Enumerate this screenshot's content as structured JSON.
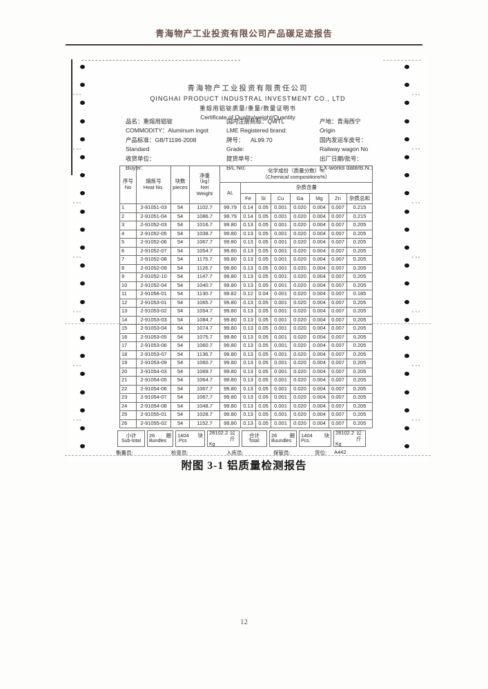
{
  "report": {
    "header_title": "青海物产工业投资有限公司产品碳足迹报告",
    "caption": "附图 3-1 铝质量检测报告",
    "page_number": "12"
  },
  "certificate": {
    "company_cn": "青海物产工业投资有限责任公司",
    "company_en": "QINGHAI  PRODUCT  INDUSTRAL  INVESTMENT  CO., LTD",
    "doc_title_cn": "重熔用铝锭质量/重量/数量证明书",
    "doc_title_en": "Certificate  of  Quality/weight/Quantity",
    "info_columns": [
      [
        "品名：重熔用铝锭",
        "COMMODITY：Aluminum ingot",
        "产品标准：GB/T1196-2008",
        "Standard",
        "收货单位：",
        "Buyer:"
      ],
      [
        "国内注册商标：QWTL",
        "LME Registered brand:",
        "牌号：    AL99.70",
        "Grade:",
        "提货单号：",
        "B/L No:"
      ],
      [
        "产地：青海西宁",
        "Origin",
        "国内发运车皮号：",
        "Railway wagon No",
        "出厂日期/批号：",
        "EX-works date/B.N.:"
      ]
    ],
    "table": {
      "header": {
        "no_cn": "序号",
        "no_en": "No",
        "heat_cn": "熔炼号",
        "heat_en": "Heat No.",
        "pieces_cn": "块数",
        "pieces_en": "pieces",
        "net_cn": "净重",
        "net_kg": "（kg）",
        "net_en1": "Net",
        "net_en2": "Weight",
        "chem_cn": "化学成份（质量分数）%",
        "chem_en": "（Chemical compositions%）",
        "al": "AL",
        "impurity_cn": "杂质含量",
        "elements": [
          "Fe",
          "Si",
          "Cu",
          "Ga",
          "Mg",
          "Zn",
          "杂质总和"
        ]
      },
      "rows": [
        [
          "1",
          "2-91051-03",
          "54",
          "1102.7",
          "99.79",
          "0.14",
          "0.05",
          "0.001",
          "0.020",
          "0.004",
          "0.007",
          "0.215"
        ],
        [
          "2",
          "2-91051-04",
          "54",
          "1086.7",
          "99.79",
          "0.14",
          "0.05",
          "0.001",
          "0.020",
          "0.004",
          "0.007",
          "0.215"
        ],
        [
          "3",
          "2-91052-03",
          "54",
          "1016.7",
          "99.80",
          "0.13",
          "0.05",
          "0.001",
          "0.020",
          "0.004",
          "0.007",
          "0.205"
        ],
        [
          "4",
          "2-91052-05",
          "54",
          "1038.7",
          "99.80",
          "0.13",
          "0.05",
          "0.001",
          "0.020",
          "0.004",
          "0.007",
          "0.205"
        ],
        [
          "5",
          "2-91052-06",
          "54",
          "1067.7",
          "99.80",
          "0.13",
          "0.05",
          "0.001",
          "0.020",
          "0.004",
          "0.007",
          "0.205"
        ],
        [
          "6",
          "2-91052-07",
          "54",
          "1054.7",
          "99.80",
          "0.13",
          "0.05",
          "0.001",
          "0.020",
          "0.004",
          "0.007",
          "0.205"
        ],
        [
          "7",
          "2-91052-08",
          "54",
          "1175.7",
          "99.80",
          "0.13",
          "0.05",
          "0.001",
          "0.020",
          "0.004",
          "0.007",
          "0.205"
        ],
        [
          "8",
          "2-91052-09",
          "54",
          "1126.7",
          "99.80",
          "0.13",
          "0.05",
          "0.001",
          "0.020",
          "0.004",
          "0.007",
          "0.205"
        ],
        [
          "9",
          "2-91052-10",
          "54",
          "1147.7",
          "99.80",
          "0.13",
          "0.05",
          "0.001",
          "0.020",
          "0.004",
          "0.007",
          "0.205"
        ],
        [
          "10",
          "2-91052-04",
          "54",
          "1040.7",
          "99.80",
          "0.13",
          "0.05",
          "0.001",
          "0.020",
          "0.004",
          "0.007",
          "0.205"
        ],
        [
          "11",
          "2-91056-01",
          "54",
          "1130.7",
          "99.82",
          "0.12",
          "0.04",
          "0.001",
          "0.020",
          "0.004",
          "0.007",
          "0.185"
        ],
        [
          "12",
          "2-91053-01",
          "54",
          "1065.7",
          "99.80",
          "0.13",
          "0.05",
          "0.001",
          "0.020",
          "0.004",
          "0.007",
          "0.205"
        ],
        [
          "13",
          "2-91053-02",
          "54",
          "1054.7",
          "99.80",
          "0.13",
          "0.05",
          "0.001",
          "0.020",
          "0.004",
          "0.007",
          "0.205"
        ],
        [
          "14",
          "2-91053-03",
          "54",
          "1084.7",
          "99.80",
          "0.13",
          "0.05",
          "0.001",
          "0.020",
          "0.004",
          "0.007",
          "0.205"
        ],
        [
          "15",
          "2-91053-04",
          "54",
          "1074.7",
          "99.80",
          "0.13",
          "0.05",
          "0.001",
          "0.020",
          "0.004",
          "0.007",
          "0.205"
        ],
        [
          "16",
          "2-91053-05",
          "54",
          "1075.7",
          "99.80",
          "0.13",
          "0.05",
          "0.001",
          "0.020",
          "0.004",
          "0.007",
          "0.205"
        ],
        [
          "17",
          "2-91053-06",
          "54",
          "1060.7",
          "99.80",
          "0.13",
          "0.05",
          "0.001",
          "0.020",
          "0.004",
          "0.007",
          "0.205"
        ],
        [
          "18",
          "2-91053-07",
          "54",
          "1136.7",
          "99.80",
          "0.13",
          "0.05",
          "0.001",
          "0.020",
          "0.004",
          "0.007",
          "0.205"
        ],
        [
          "19",
          "2-91053-09",
          "54",
          "1060.7",
          "99.80",
          "0.13",
          "0.05",
          "0.001",
          "0.020",
          "0.004",
          "0.007",
          "0.205"
        ],
        [
          "20",
          "2-91054-03",
          "54",
          "1069.7",
          "99.80",
          "0.13",
          "0.05",
          "0.001",
          "0.020",
          "0.004",
          "0.007",
          "0.205"
        ],
        [
          "21",
          "2-91054-05",
          "54",
          "1064.7",
          "99.80",
          "0.13",
          "0.05",
          "0.001",
          "0.020",
          "0.004",
          "0.007",
          "0.205"
        ],
        [
          "22",
          "2-91054-06",
          "54",
          "1067.7",
          "99.80",
          "0.13",
          "0.05",
          "0.001",
          "0.020",
          "0.004",
          "0.007",
          "0.205"
        ],
        [
          "23",
          "2-91054-07",
          "54",
          "1067.7",
          "99.80",
          "0.13",
          "0.05",
          "0.001",
          "0.020",
          "0.004",
          "0.007",
          "0.205"
        ],
        [
          "24",
          "2-91054-08",
          "54",
          "1048.7",
          "99.80",
          "0.13",
          "0.05",
          "0.001",
          "0.020",
          "0.004",
          "0.007",
          "0.205"
        ],
        [
          "25",
          "2-91055-01",
          "54",
          "1028.7",
          "99.80",
          "0.13",
          "0.05",
          "0.001",
          "0.020",
          "0.004",
          "0.007",
          "0.205"
        ],
        [
          "26",
          "2-91055-02",
          "54",
          "1152.7",
          "99.80",
          "0.13",
          "0.05",
          "0.001",
          "0.020",
          "0.004",
          "0.007",
          "0.205"
        ]
      ]
    },
    "totals": {
      "boxes": [
        {
          "main": "小计",
          "unit": "",
          "sub": "Sub-total"
        },
        {
          "main": "26",
          "unit": "捆",
          "sub": "Bundles"
        },
        {
          "main": "1404",
          "unit": "块",
          "sub": ".Pcs"
        },
        {
          "main": "28102.2",
          "unit": "公斤",
          "sub": "Kg"
        },
        {
          "main": "合计",
          "unit": "",
          "sub": "Total:"
        },
        {
          "main": "26",
          "unit": "捆",
          "sub": "Buundles"
        },
        {
          "main": "1404",
          "unit": "块",
          "sub": "Pcs."
        },
        {
          "main": "28102.2",
          "unit": "公斤",
          "sub": "Kg"
        }
      ]
    },
    "staff": [
      "衡量员:",
      "检查员:",
      "入库员:",
      "保管员:",
      "货位:",
      "A442"
    ]
  }
}
